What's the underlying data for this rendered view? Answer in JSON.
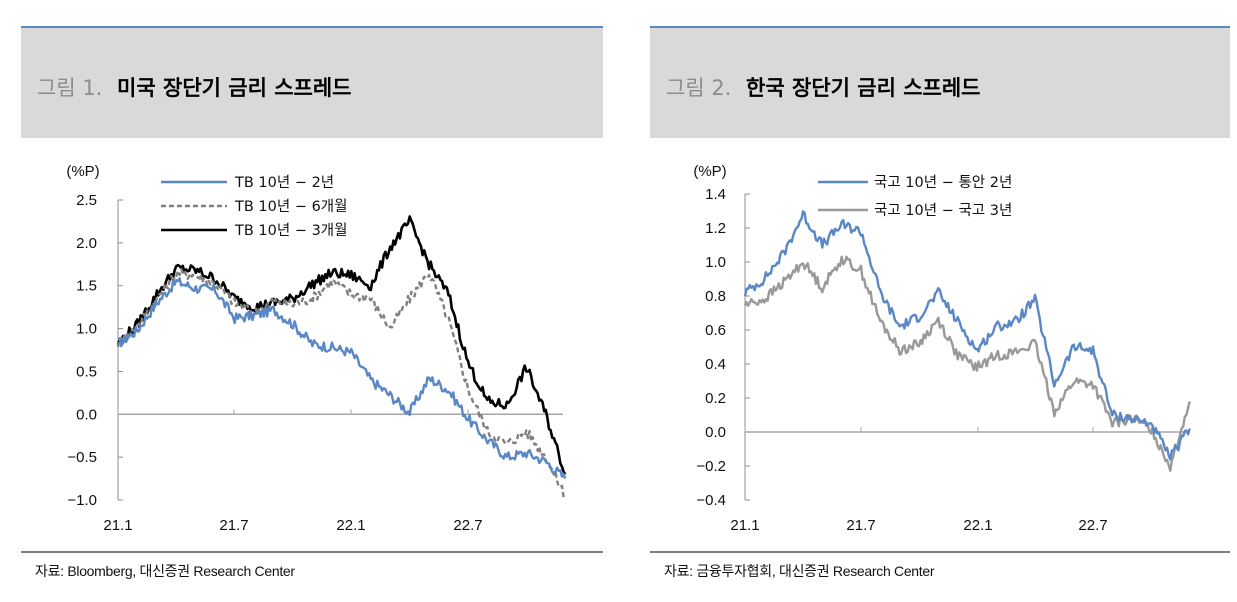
{
  "panels": [
    {
      "figure_number": "그림 1.",
      "title": "미국 장단기 금리 스프레드",
      "source": "자료: Bloomberg, 대신증권 Research Center"
    },
    {
      "figure_number": "그림 2.",
      "title": "한국 장단기 금리 스프레드",
      "source": "자료: 금융투자협회, 대신증권 Research Center"
    }
  ],
  "chart_data": [
    {
      "type": "line",
      "title": "미국 장단기 금리 스프레드",
      "ylabel": "(%P)",
      "xlabel": "",
      "ylim": [
        -1.0,
        2.5
      ],
      "yticks": [
        "2.5",
        "2.0",
        "1.5",
        "1.0",
        "0.5",
        "0.0",
        "−0.5",
        "−1.0"
      ],
      "xticks": [
        "21.1",
        "21.7",
        "22.1",
        "22.7"
      ],
      "legend_position": "top-center",
      "grid": false,
      "x": [
        "21.1",
        "21.2",
        "21.3",
        "21.4",
        "21.5",
        "21.6",
        "21.7",
        "21.8",
        "21.9",
        "21.10",
        "21.11",
        "21.12",
        "22.1",
        "22.2",
        "22.3",
        "22.4",
        "22.5",
        "22.6",
        "22.7",
        "22.8",
        "22.9",
        "22.10",
        "22.11",
        "22.12"
      ],
      "series": [
        {
          "name": "TB 10년 − 2년",
          "color": "#5a87c5",
          "style": "solid",
          "values": [
            0.82,
            0.98,
            1.3,
            1.55,
            1.47,
            1.45,
            1.12,
            1.15,
            1.22,
            1.05,
            0.82,
            0.78,
            0.72,
            0.4,
            0.22,
            0.02,
            0.42,
            0.28,
            -0.05,
            -0.3,
            -0.5,
            -0.45,
            -0.55,
            -0.75
          ]
        },
        {
          "name": "TB 10년 − 6개월",
          "color": "#808080",
          "style": "dashed",
          "values": [
            0.83,
            1.02,
            1.35,
            1.65,
            1.62,
            1.52,
            1.3,
            1.18,
            1.32,
            1.28,
            1.35,
            1.55,
            1.4,
            1.35,
            1.0,
            1.35,
            1.65,
            1.1,
            0.3,
            -0.2,
            -0.35,
            -0.2,
            -0.5,
            -0.95
          ]
        },
        {
          "name": "TB 10년 − 3개월",
          "color": "#000000",
          "style": "solid",
          "values": [
            0.83,
            1.05,
            1.4,
            1.7,
            1.68,
            1.58,
            1.35,
            1.25,
            1.3,
            1.35,
            1.52,
            1.65,
            1.62,
            1.5,
            1.95,
            2.25,
            1.75,
            1.4,
            0.6,
            0.15,
            0.1,
            0.55,
            0.0,
            -0.7
          ]
        }
      ]
    },
    {
      "type": "line",
      "title": "한국 장단기 금리 스프레드",
      "ylabel": "(%P)",
      "xlabel": "",
      "ylim": [
        -0.4,
        1.4
      ],
      "yticks": [
        "1.4",
        "1.2",
        "1.0",
        "0.8",
        "0.6",
        "0.4",
        "0.2",
        "0.0",
        "−0.2",
        "−0.4"
      ],
      "xticks": [
        "21.1",
        "21.7",
        "22.1",
        "22.7"
      ],
      "legend_position": "top-center",
      "grid": false,
      "x": [
        "21.1",
        "21.2",
        "21.3",
        "21.4",
        "21.5",
        "21.6",
        "21.7",
        "21.8",
        "21.9",
        "21.10",
        "21.11",
        "21.12",
        "22.1",
        "22.2",
        "22.3",
        "22.4",
        "22.5",
        "22.6",
        "22.7",
        "22.8",
        "22.9",
        "22.10",
        "22.11",
        "22.12"
      ],
      "series": [
        {
          "name": "국고 10년 − 통안 2년",
          "color": "#5a87c5",
          "style": "solid",
          "values": [
            0.82,
            0.9,
            1.05,
            1.28,
            1.1,
            1.22,
            1.18,
            0.82,
            0.62,
            0.68,
            0.82,
            0.65,
            0.48,
            0.62,
            0.65,
            0.78,
            0.28,
            0.5,
            0.48,
            0.1,
            0.08,
            0.05,
            -0.15,
            0.02
          ]
        },
        {
          "name": "국고 10년 − 국고 3년",
          "color": "#999999",
          "style": "solid",
          "values": [
            0.75,
            0.78,
            0.88,
            1.0,
            0.85,
            1.02,
            0.95,
            0.65,
            0.48,
            0.52,
            0.66,
            0.45,
            0.38,
            0.45,
            0.47,
            0.52,
            0.12,
            0.3,
            0.28,
            0.05,
            0.08,
            0.02,
            -0.2,
            0.18
          ]
        }
      ]
    }
  ]
}
